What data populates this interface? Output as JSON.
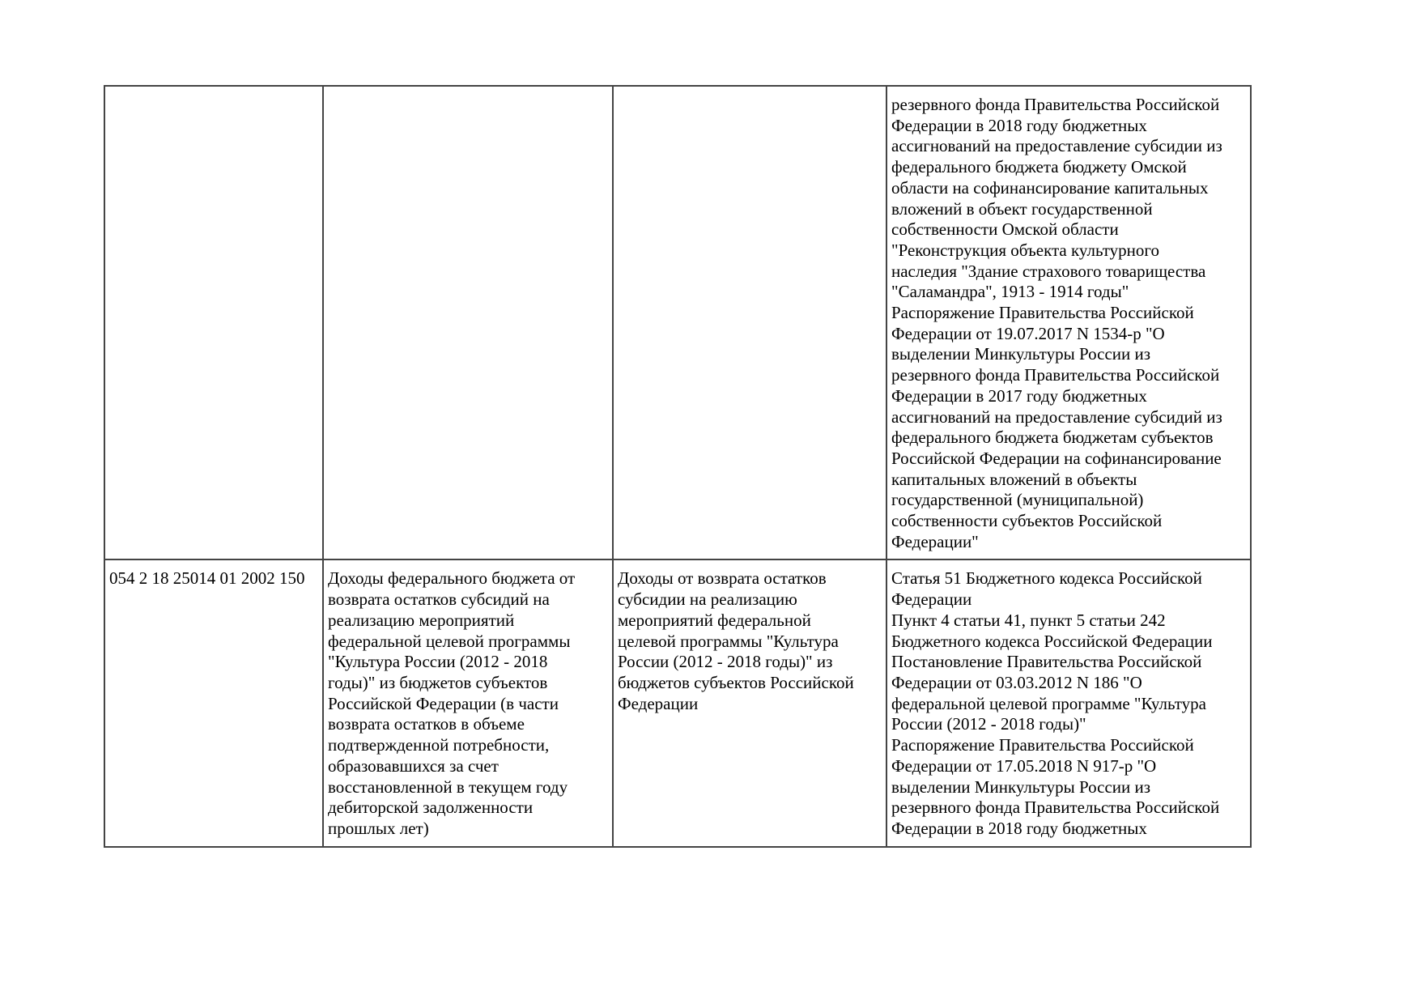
{
  "table": {
    "rows": [
      {
        "code": [],
        "name": [],
        "description": [],
        "basis": [
          "резервного фонда Правительства Российской",
          "Федерации в 2018 году бюджетных",
          "ассигнований на предоставление субсидии из",
          "федерального бюджета бюджету Омской",
          "области на софинансирование капитальных",
          "вложений в объект государственной",
          "собственности Омской области",
          "\"Реконструкция объекта культурного",
          "наследия \"Здание страхового товарищества",
          "\"Саламандра\", 1913 - 1914 годы\"",
          "Распоряжение Правительства Российской",
          "Федерации от 19.07.2017 N 1534-р \"О",
          "выделении Минкультуры России из",
          "резервного фонда Правительства Российской",
          "Федерации в 2017 году бюджетных",
          "ассигнований на предоставление субсидий из",
          "федерального бюджета бюджетам субъектов",
          "Российской Федерации на софинансирование",
          "капитальных вложений в объекты",
          "государственной (муниципальной)",
          "собственности субъектов Российской",
          "Федерации\""
        ]
      },
      {
        "code": [
          "054 2 18 25014 01 2002 150"
        ],
        "name": [
          "Доходы федерального бюджета от",
          "возврата остатков субсидий на",
          "реализацию мероприятий",
          "федеральной целевой программы",
          "\"Культура России (2012 - 2018",
          "годы)\" из бюджетов субъектов",
          "Российской Федерации (в части",
          "возврата остатков в объеме",
          "подтвержденной потребности,",
          "образовавшихся за счет",
          "восстановленной в текущем году",
          "дебиторской задолженности",
          "прошлых лет)"
        ],
        "description": [
          "Доходы от возврата остатков",
          "субсидии на реализацию",
          "мероприятий федеральной",
          "целевой программы \"Культура",
          "России (2012 - 2018 годы)\" из",
          "бюджетов субъектов Российской",
          "Федерации"
        ],
        "basis": [
          "Статья 51 Бюджетного кодекса Российской",
          "Федерации",
          "Пункт 4 статьи 41, пункт 5 статьи 242",
          "Бюджетного кодекса Российской Федерации",
          "Постановление Правительства Российской",
          "Федерации от 03.03.2012 N 186 \"О",
          "федеральной целевой программе \"Культура",
          "России (2012 - 2018 годы)\"",
          "Распоряжение Правительства Российской",
          "Федерации от 17.05.2018 N 917-р \"О",
          "выделении Минкультуры России из",
          "резервного фонда Правительства Российской",
          "Федерации в 2018 году бюджетных"
        ]
      }
    ]
  }
}
